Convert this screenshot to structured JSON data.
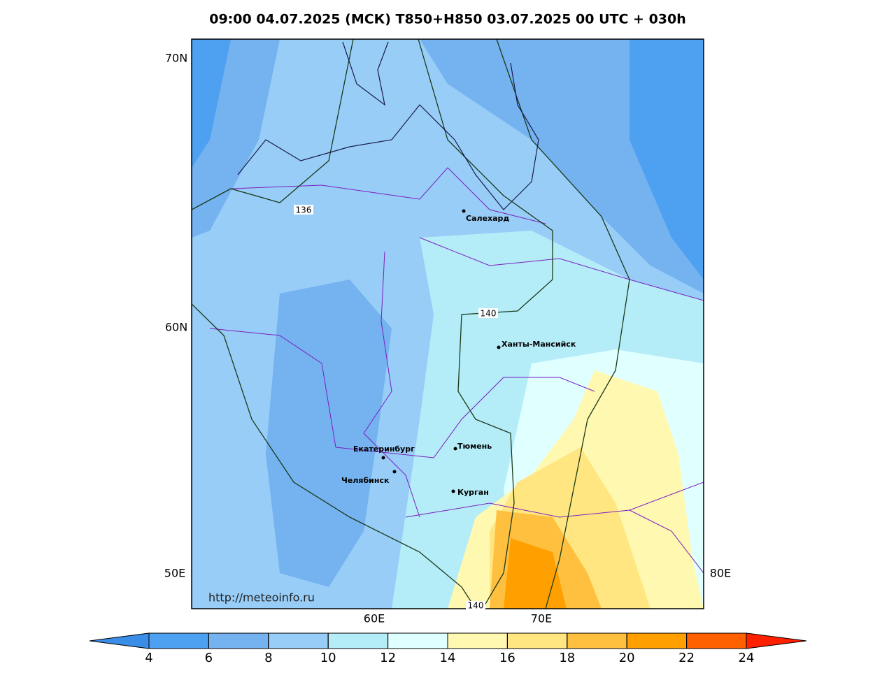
{
  "title": "09:00 04.07.2025 (МСК) T850+H850 03.07.2025 00 UTC + 030h",
  "lat_labels": [
    "70N",
    "60N"
  ],
  "lon_labels": [
    "50E",
    "60E",
    "70E",
    "80E"
  ],
  "cities": [
    "Салехард",
    "Ханты-Мансийск",
    "Тюмень",
    "Екатеринбург",
    "Челябинск",
    "Курган"
  ],
  "contour_labels": [
    "136",
    "140",
    "140"
  ],
  "watermark": "http://meteoinfo.ru",
  "colorbar": {
    "ticks": [
      4,
      6,
      8,
      10,
      12,
      14,
      16,
      18,
      20,
      22,
      24
    ],
    "colors": [
      "#3a8ee8",
      "#4ea0f0",
      "#74b2f0",
      "#97cdf7",
      "#b4ecf8",
      "#e0ffff",
      "#fff8b0",
      "#ffe680",
      "#ffc040",
      "#ffa000",
      "#ff6000",
      "#ff2000"
    ]
  }
}
